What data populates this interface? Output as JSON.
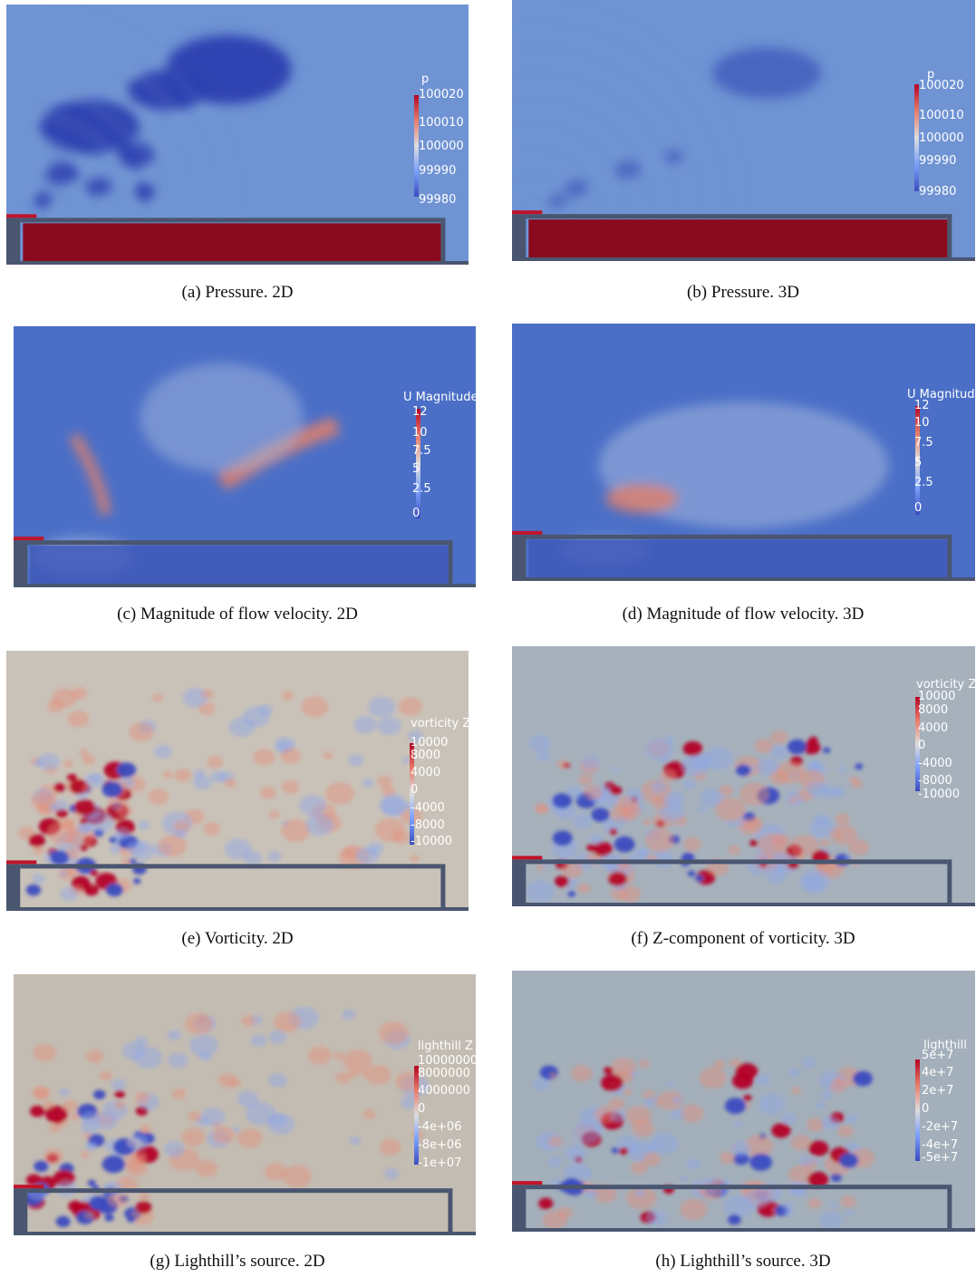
{
  "figure": {
    "panels": [
      {
        "id": "a",
        "caption": "(a)  Pressure. 2D",
        "legend_title": "p",
        "ticks": [
          "100020",
          "100010",
          "100000",
          "99990",
          "99980"
        ],
        "theme": "pressure",
        "dim": "2D"
      },
      {
        "id": "b",
        "caption": "(b)  Pressure. 3D",
        "legend_title": "p",
        "ticks": [
          "100020",
          "100010",
          "100000",
          "99990",
          "99980"
        ],
        "theme": "pressure",
        "dim": "3D"
      },
      {
        "id": "c",
        "caption": "(c)  Magnitude of flow velocity. 2D",
        "legend_title": "U Magnitude",
        "ticks": [
          "12",
          "10",
          "7.5",
          "5",
          "2.5",
          "0"
        ],
        "theme": "velocity",
        "dim": "2D"
      },
      {
        "id": "d",
        "caption": "(d)  Magnitude of flow velocity. 3D",
        "legend_title": "U Magnitude",
        "ticks": [
          "12",
          "10",
          "7.5",
          "5",
          "2.5",
          "0"
        ],
        "theme": "velocity",
        "dim": "3D"
      },
      {
        "id": "e",
        "caption": "(e)  Vorticity. 2D",
        "legend_title": "vorticity Z",
        "ticks": [
          "10000",
          "8000",
          "4000",
          "0",
          "-4000",
          "-8000",
          "-10000"
        ],
        "theme": "vorticity",
        "dim": "2D"
      },
      {
        "id": "f",
        "caption": "(f)  Z-component of vorticity. 3D",
        "legend_title": "vorticity Z",
        "ticks": [
          "10000",
          "8000",
          "4000",
          "0",
          "-4000",
          "-8000",
          "-10000"
        ],
        "theme": "vorticity",
        "dim": "3D"
      },
      {
        "id": "g",
        "caption": "(g)  Lighthill’s source. 2D",
        "legend_title": "lighthill Z",
        "ticks": [
          "10000000",
          "8000000",
          "4000000",
          "0",
          "-4e+06",
          "-8e+06",
          "-1e+07"
        ],
        "theme": "lighthill",
        "dim": "2D"
      },
      {
        "id": "h",
        "caption": "(h)  Lighthill’s source. 3D",
        "legend_title": "lighthill",
        "ticks": [
          "5e+7",
          "4e+7",
          "2e+7",
          "0",
          "-2e+7",
          "-4e+7",
          "-5e+7"
        ],
        "theme": "lighthill",
        "dim": "3D"
      }
    ],
    "colors": {
      "cool": "#3b4cc0",
      "warm": "#b40426",
      "neutral": "#dddddd",
      "structure": "#4a5670",
      "cavity_hot": "#8a0a1e"
    }
  }
}
